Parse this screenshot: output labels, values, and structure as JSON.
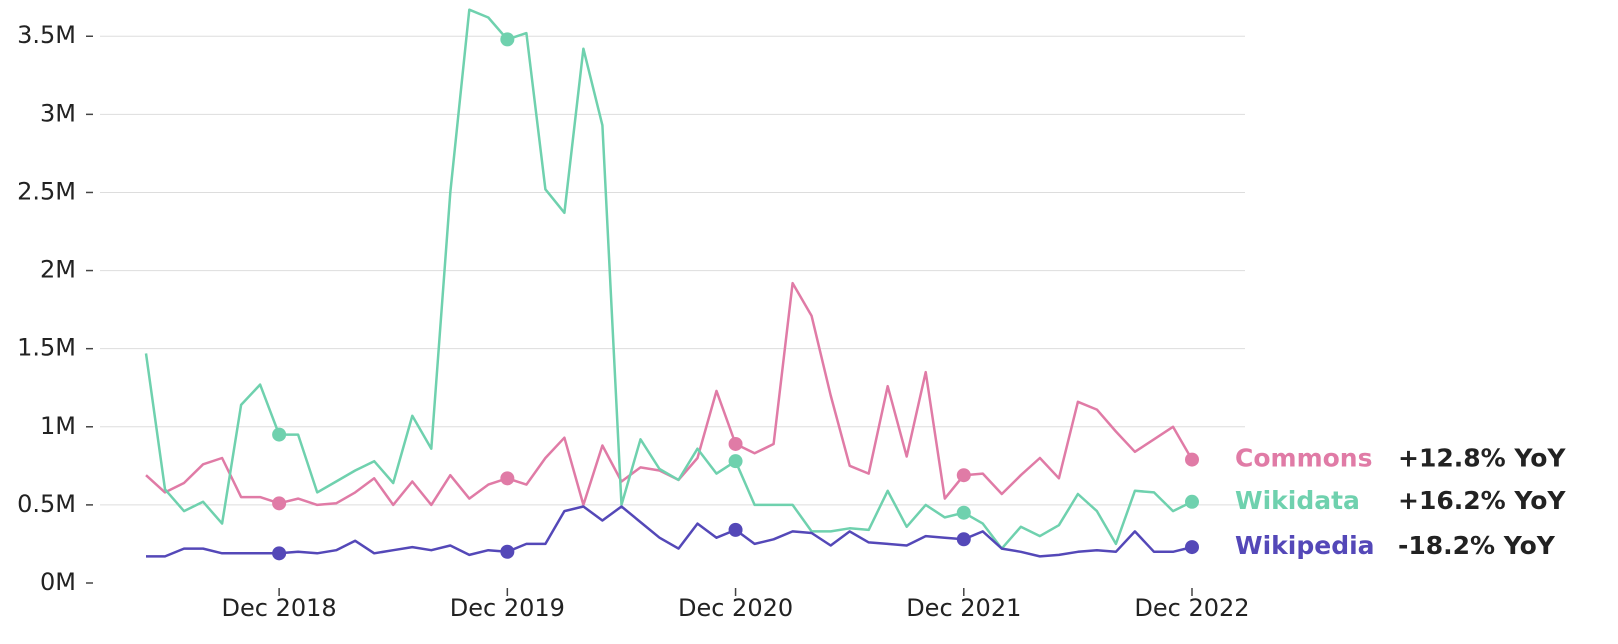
{
  "chart_data": {
    "type": "line",
    "x": [
      "May 2018",
      "Jun 2018",
      "Jul 2018",
      "Aug 2018",
      "Sep 2018",
      "Oct 2018",
      "Nov 2018",
      "Dec 2018",
      "Jan 2019",
      "Feb 2019",
      "Mar 2019",
      "Apr 2019",
      "May 2019",
      "Jun 2019",
      "Jul 2019",
      "Aug 2019",
      "Sep 2019",
      "Oct 2019",
      "Nov 2019",
      "Dec 2019",
      "Jan 2020",
      "Feb 2020",
      "Mar 2020",
      "Apr 2020",
      "May 2020",
      "Jun 2020",
      "Jul 2020",
      "Aug 2020",
      "Sep 2020",
      "Oct 2020",
      "Nov 2020",
      "Dec 2020",
      "Jan 2021",
      "Feb 2021",
      "Mar 2021",
      "Apr 2021",
      "May 2021",
      "Jun 2021",
      "Jul 2021",
      "Aug 2021",
      "Sep 2021",
      "Oct 2021",
      "Nov 2021",
      "Dec 2021",
      "Jan 2022",
      "Feb 2022",
      "Mar 2022",
      "Apr 2022",
      "May 2022",
      "Jun 2022",
      "Jul 2022",
      "Aug 2022",
      "Sep 2022",
      "Oct 2022",
      "Nov 2022",
      "Dec 2022"
    ],
    "xticks": [
      "Dec 2018",
      "Dec 2019",
      "Dec 2020",
      "Dec 2021",
      "Dec 2022"
    ],
    "ylim": [
      0,
      3.7
    ],
    "yticks": [
      {
        "value": 0,
        "label": "0M"
      },
      {
        "value": 0.5,
        "label": "0.5M"
      },
      {
        "value": 1,
        "label": "1M"
      },
      {
        "value": 1.5,
        "label": "1.5M"
      },
      {
        "value": 2,
        "label": "2M"
      },
      {
        "value": 2.5,
        "label": "2.5M"
      },
      {
        "value": 3,
        "label": "3M"
      },
      {
        "value": 3.5,
        "label": "3.5M"
      }
    ],
    "grid": true,
    "series": [
      {
        "name": "Commons",
        "color": "#e07ba6",
        "yoy": "+12.8% YoY",
        "values": [
          0.69,
          0.58,
          0.64,
          0.76,
          0.8,
          0.55,
          0.55,
          0.51,
          0.54,
          0.5,
          0.51,
          0.58,
          0.67,
          0.5,
          0.65,
          0.5,
          0.69,
          0.54,
          0.63,
          0.67,
          0.63,
          0.8,
          0.93,
          0.5,
          0.88,
          0.65,
          0.74,
          0.72,
          0.66,
          0.8,
          1.23,
          0.89,
          0.83,
          0.89,
          1.92,
          1.71,
          1.2,
          0.75,
          0.7,
          1.26,
          0.81,
          1.35,
          0.54,
          0.69,
          0.7,
          0.57,
          0.69,
          0.8,
          0.67,
          1.16,
          1.11,
          0.97,
          0.84,
          0.92,
          1.0,
          0.79
        ]
      },
      {
        "name": "Wikidata",
        "color": "#6fd1ae",
        "yoy": "+16.2% YoY",
        "values": [
          1.47,
          0.6,
          0.46,
          0.52,
          0.38,
          1.14,
          1.27,
          0.95,
          0.95,
          0.58,
          0.65,
          0.72,
          0.78,
          0.64,
          1.07,
          0.86,
          2.5,
          3.67,
          3.62,
          3.48,
          3.52,
          2.52,
          2.37,
          3.42,
          2.93,
          0.5,
          0.92,
          0.73,
          0.66,
          0.86,
          0.7,
          0.78,
          0.5,
          0.5,
          0.5,
          0.33,
          0.33,
          0.35,
          0.34,
          0.59,
          0.36,
          0.5,
          0.42,
          0.45,
          0.38,
          0.22,
          0.36,
          0.3,
          0.37,
          0.57,
          0.46,
          0.25,
          0.59,
          0.58,
          0.46,
          0.52
        ]
      },
      {
        "name": "Wikipedia",
        "color": "#5448b8",
        "yoy": "-18.2% YoY",
        "values": [
          0.17,
          0.17,
          0.22,
          0.22,
          0.19,
          0.19,
          0.19,
          0.19,
          0.2,
          0.19,
          0.21,
          0.27,
          0.19,
          0.21,
          0.23,
          0.21,
          0.24,
          0.18,
          0.21,
          0.2,
          0.25,
          0.25,
          0.46,
          0.49,
          0.4,
          0.49,
          0.39,
          0.29,
          0.22,
          0.38,
          0.29,
          0.34,
          0.25,
          0.28,
          0.33,
          0.32,
          0.24,
          0.33,
          0.26,
          0.25,
          0.24,
          0.3,
          0.29,
          0.28,
          0.33,
          0.22,
          0.2,
          0.17,
          0.18,
          0.2,
          0.21,
          0.2,
          0.33,
          0.2,
          0.2,
          0.23
        ]
      }
    ]
  }
}
